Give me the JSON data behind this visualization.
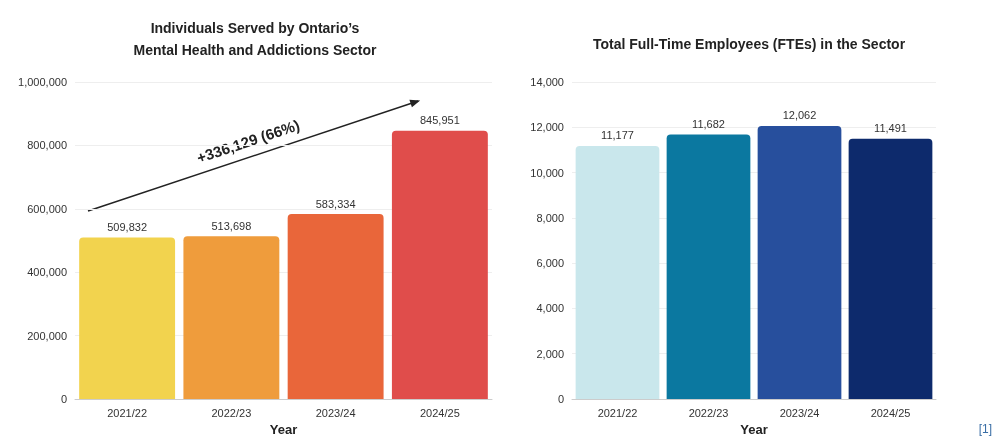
{
  "chart_data": [
    {
      "type": "bar",
      "title": "Individuals Served by Ontario’s\nMental Health and Addictions Sector",
      "xlabel": "Year",
      "categories": [
        "2021/22",
        "2022/23",
        "2023/24",
        "2024/25"
      ],
      "values": [
        509832,
        513698,
        583334,
        845951
      ],
      "value_labels": [
        "509,832",
        "513,698",
        "583,334",
        "845,951"
      ],
      "colors": [
        "#f2d34e",
        "#ef9c3c",
        "#e9663a",
        "#e04d4b"
      ],
      "ylim": [
        0,
        1000000
      ],
      "yticks": [
        0,
        {
          "value": 200000,
          "label": "200,000"
        },
        {
          "value": 400000,
          "label": "400,000"
        },
        {
          "value": 600000,
          "label": "600,000"
        },
        {
          "value": 800000,
          "label": "800,000"
        },
        {
          "value": 1000000,
          "label": "1,000,000"
        }
      ],
      "grid": "y",
      "annotations": [
        "+336,129 (66%)"
      ]
    },
    {
      "type": "bar",
      "title": "Total Full-Time Employees (FTEs) in the Sector",
      "xlabel": "Year",
      "categories": [
        "2021/22",
        "2022/23",
        "2023/24",
        "2024/25"
      ],
      "values": [
        11177,
        11682,
        12062,
        11491
      ],
      "value_labels": [
        "11,177",
        "11,682",
        "12,062",
        "11,491"
      ],
      "colors": [
        "#c9e7ec",
        "#0b78a0",
        "#274f9d",
        "#0d2a6c"
      ],
      "ylim": [
        0,
        14000
      ],
      "yticks": [
        0,
        {
          "value": 2000,
          "label": "2,000"
        },
        {
          "value": 4000,
          "label": "4,000"
        },
        {
          "value": 6000,
          "label": "6,000"
        },
        {
          "value": 8000,
          "label": "8,000"
        },
        {
          "value": 10000,
          "label": "10,000"
        },
        {
          "value": 12000,
          "label": "12,000"
        },
        {
          "value": 14000,
          "label": "14,000"
        }
      ],
      "grid": "y",
      "annotations": [
        "[1]"
      ]
    }
  ]
}
